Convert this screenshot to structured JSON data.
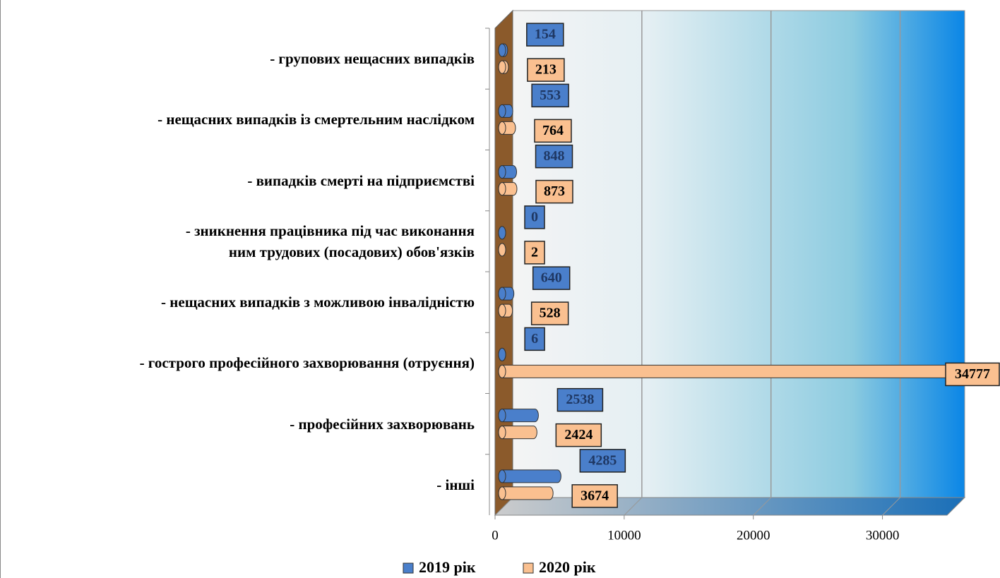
{
  "chart_data": {
    "type": "bar3d_horizontal",
    "categories": [
      "- групових нещасних випадків",
      "- нещасних випадків із смертельним наслідком",
      "- випадків смерті на підприємстві",
      "-        зникнення працівника під час виконання\nним трудових (посадових) обов'язків",
      "- нещасних випадків з можливою інвалідністю",
      "- гострого професійного захворювання (отруєння)",
      "- професійних захворювань",
      "- інші"
    ],
    "series": [
      {
        "name": "2019 рік",
        "color": "#4a7fcb",
        "values": [
          154,
          553,
          848,
          0,
          640,
          6,
          2538,
          4285
        ]
      },
      {
        "name": "2020 рік",
        "color": "#fac090",
        "values": [
          213,
          764,
          873,
          2,
          528,
          34777,
          2424,
          3674
        ]
      }
    ],
    "xlim": [
      0,
      35000
    ],
    "xticks": [
      0,
      10000,
      20000,
      30000
    ],
    "grid": true,
    "legend": "bottom"
  }
}
